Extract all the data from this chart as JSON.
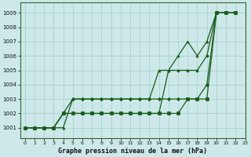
{
  "xlabel": "Graphe pression niveau de la mer (hPa)",
  "xlim": [
    -0.5,
    23
  ],
  "ylim": [
    1000.3,
    1009.7
  ],
  "yticks": [
    1001,
    1002,
    1003,
    1004,
    1005,
    1006,
    1007,
    1008,
    1009
  ],
  "xticks": [
    0,
    1,
    2,
    3,
    4,
    5,
    6,
    7,
    8,
    9,
    10,
    11,
    12,
    13,
    14,
    15,
    16,
    17,
    18,
    19,
    20,
    21,
    22,
    23
  ],
  "background_color": "#cce8e8",
  "grid_color": "#a8cccc",
  "line_color": "#1a5c1a",
  "series": [
    {
      "x": [
        0,
        1,
        2,
        3,
        4,
        5,
        6,
        7,
        8,
        9,
        10,
        11,
        12,
        13,
        14,
        15,
        16,
        17,
        18,
        19,
        20,
        21,
        22
      ],
      "y": [
        1001,
        1001,
        1001,
        1001,
        1001,
        1003,
        1003,
        1003,
        1003,
        1003,
        1003,
        1003,
        1003,
        1003,
        1005,
        1005,
        1006,
        1007,
        1006,
        1007,
        1009,
        1009,
        1009
      ],
      "marker": "^"
    },
    {
      "x": [
        0,
        1,
        2,
        3,
        4,
        5,
        6,
        7,
        8,
        9,
        10,
        11,
        12,
        13,
        14,
        15,
        16,
        17,
        18,
        19,
        20,
        21,
        22
      ],
      "y": [
        1001,
        1001,
        1001,
        1001,
        1002,
        1002,
        1002,
        1002,
        1002,
        1002,
        1002,
        1002,
        1002,
        1002,
        1002,
        1005,
        1005,
        1005,
        1005,
        1006,
        1009,
        1009,
        1009
      ],
      "marker": "o"
    },
    {
      "x": [
        0,
        1,
        2,
        3,
        4,
        5,
        6,
        7,
        8,
        9,
        10,
        11,
        12,
        13,
        14,
        15,
        16,
        17,
        18,
        19,
        20,
        21,
        22
      ],
      "y": [
        1001,
        1001,
        1001,
        1001,
        1002,
        1002,
        1002,
        1002,
        1002,
        1002,
        1002,
        1002,
        1002,
        1002,
        1002,
        1002,
        1002,
        1003,
        1003,
        1003,
        1009,
        1009,
        1009
      ],
      "marker": "s"
    },
    {
      "x": [
        0,
        1,
        2,
        3,
        4,
        5,
        6,
        7,
        8,
        9,
        10,
        11,
        12,
        13,
        14,
        15,
        16,
        17,
        18,
        19,
        20,
        21,
        22
      ],
      "y": [
        1001,
        1001,
        1001,
        1001,
        1002,
        1003,
        1003,
        1003,
        1003,
        1003,
        1003,
        1003,
        1003,
        1003,
        1003,
        1003,
        1003,
        1003,
        1003,
        1004,
        1009,
        1009,
        1009
      ],
      "marker": "D"
    }
  ]
}
